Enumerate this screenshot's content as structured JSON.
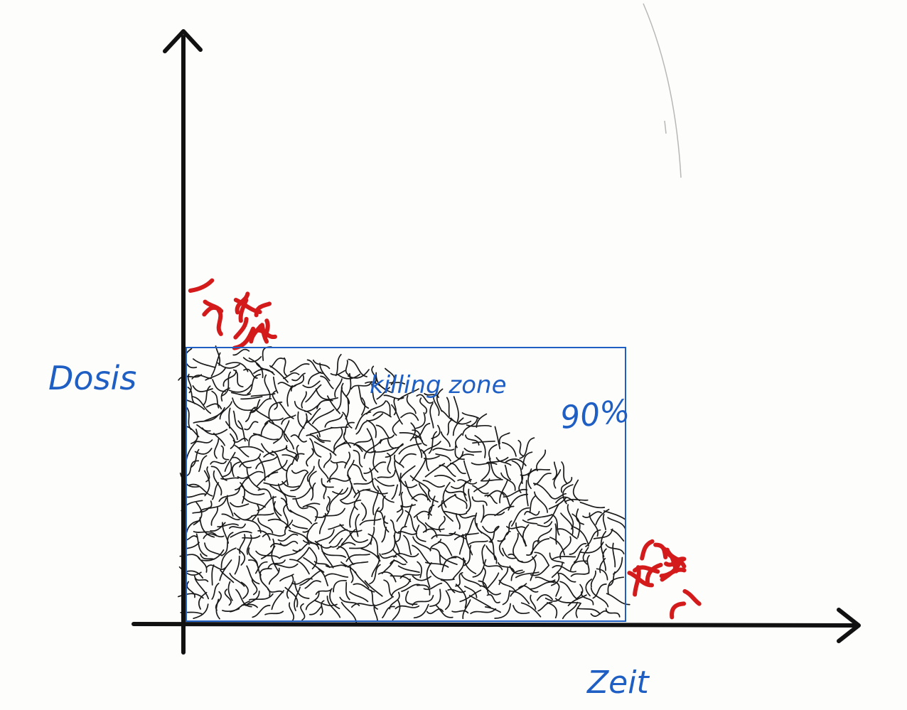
{
  "diagram": {
    "y_axis_label": "Dosis",
    "x_axis_label": "Zeit",
    "zone_label": "killing zone",
    "zone_percent": "90%"
  },
  "colors": {
    "axis": "#111111",
    "zone_border": "#1f5fc4",
    "label_ink": "#1f5fc4",
    "worm_black": "#1a1a1a",
    "worm_red": "#d41b1b"
  }
}
